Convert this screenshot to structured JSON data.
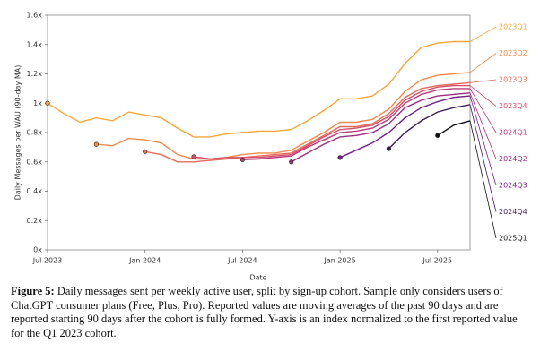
{
  "chart_data": {
    "type": "line",
    "x_label": "Date",
    "y_label": "Daily Messages per WAU (90-day MA)",
    "x": [
      "2023-07",
      "2023-08",
      "2023-09",
      "2023-10",
      "2023-11",
      "2023-12",
      "2024-01",
      "2024-02",
      "2024-03",
      "2024-04",
      "2024-05",
      "2024-06",
      "2024-07",
      "2024-08",
      "2024-09",
      "2024-10",
      "2024-11",
      "2024-12",
      "2025-01",
      "2025-02",
      "2025-03",
      "2025-04",
      "2025-05",
      "2025-06",
      "2025-07",
      "2025-08",
      "2025-09"
    ],
    "xlim": [
      "2023-07",
      "2025-09"
    ],
    "xticks": [
      {
        "value": "2023-07",
        "label": "Jul 2023"
      },
      {
        "value": "2024-01",
        "label": "Jan 2024"
      },
      {
        "value": "2024-07",
        "label": "Jul 2024"
      },
      {
        "value": "2025-01",
        "label": "Jan 2025"
      },
      {
        "value": "2025-07",
        "label": "Jul 2025"
      }
    ],
    "ylim": [
      0,
      1.6
    ],
    "yticks": [
      {
        "value": 0,
        "label": "0x"
      },
      {
        "value": 0.2,
        "label": "0.2x"
      },
      {
        "value": 0.4,
        "label": "0.4x"
      },
      {
        "value": 0.6,
        "label": "0.6x"
      },
      {
        "value": 0.8,
        "label": "0.8x"
      },
      {
        "value": 1,
        "label": "1x"
      },
      {
        "value": 1.2,
        "label": "1.2x"
      },
      {
        "value": 1.4,
        "label": "1.4x"
      },
      {
        "value": 1.6,
        "label": "1.6x"
      }
    ],
    "grid": false,
    "series": [
      {
        "name": "2023Q1",
        "color": "#f4a73b",
        "values": [
          1.0,
          0.93,
          0.87,
          0.9,
          0.88,
          0.94,
          0.92,
          0.9,
          0.83,
          0.77,
          0.77,
          0.79,
          0.8,
          0.81,
          0.81,
          0.82,
          0.88,
          0.95,
          1.03,
          1.03,
          1.05,
          1.13,
          1.27,
          1.38,
          1.41,
          1.42,
          1.42
        ]
      },
      {
        "name": "2023Q2",
        "color": "#ef8a4a",
        "values": [
          null,
          null,
          null,
          0.72,
          0.71,
          0.76,
          0.75,
          0.73,
          0.65,
          0.62,
          0.62,
          0.63,
          0.65,
          0.66,
          0.66,
          0.68,
          0.74,
          0.8,
          0.87,
          0.87,
          0.89,
          0.96,
          1.08,
          1.16,
          1.19,
          1.2,
          1.21
        ]
      },
      {
        "name": "2023Q3",
        "color": "#e5695c",
        "values": [
          null,
          null,
          null,
          null,
          null,
          null,
          0.67,
          0.65,
          0.6,
          0.6,
          0.61,
          0.62,
          0.63,
          0.64,
          0.65,
          0.66,
          0.72,
          0.78,
          0.84,
          0.84,
          0.86,
          0.93,
          1.04,
          1.1,
          1.12,
          1.13,
          1.14
        ]
      },
      {
        "name": "2023Q4",
        "color": "#d34f6b",
        "values": [
          null,
          null,
          null,
          null,
          null,
          null,
          null,
          null,
          null,
          0.635,
          0.62,
          0.63,
          0.63,
          0.63,
          0.64,
          0.65,
          0.71,
          0.77,
          0.82,
          0.83,
          0.85,
          0.91,
          1.02,
          1.08,
          1.11,
          1.12,
          1.12
        ]
      },
      {
        "name": "2024Q1",
        "color": "#b93a78",
        "values": [
          null,
          null,
          null,
          null,
          null,
          null,
          null,
          null,
          null,
          null,
          null,
          null,
          0.615,
          0.62,
          0.63,
          0.64,
          0.7,
          0.75,
          0.8,
          0.81,
          0.83,
          0.89,
          1.0,
          1.06,
          1.09,
          1.1,
          1.1
        ]
      },
      {
        "name": "2024Q2",
        "color": "#9a2d80",
        "values": [
          null,
          null,
          null,
          null,
          null,
          null,
          null,
          null,
          null,
          null,
          null,
          null,
          null,
          null,
          null,
          0.6,
          0.66,
          0.72,
          0.77,
          0.78,
          0.8,
          0.86,
          0.97,
          1.02,
          1.05,
          1.06,
          1.07
        ]
      },
      {
        "name": "2024Q3",
        "color": "#72208a",
        "values": [
          null,
          null,
          null,
          null,
          null,
          null,
          null,
          null,
          null,
          null,
          null,
          null,
          null,
          null,
          null,
          null,
          null,
          null,
          0.63,
          0.68,
          0.73,
          0.8,
          0.9,
          0.97,
          1.01,
          1.04,
          1.05
        ]
      },
      {
        "name": "2024Q4",
        "color": "#3f1a5c",
        "values": [
          null,
          null,
          null,
          null,
          null,
          null,
          null,
          null,
          null,
          null,
          null,
          null,
          null,
          null,
          null,
          null,
          null,
          null,
          null,
          null,
          null,
          0.69,
          0.8,
          0.88,
          0.94,
          0.97,
          0.99
        ]
      },
      {
        "name": "2025Q1",
        "color": "#111111",
        "values": [
          null,
          null,
          null,
          null,
          null,
          null,
          null,
          null,
          null,
          null,
          null,
          null,
          null,
          null,
          null,
          null,
          null,
          null,
          null,
          null,
          null,
          null,
          null,
          null,
          0.78,
          0.85,
          0.88
        ]
      }
    ]
  },
  "figure": {
    "label": "Figure 5:",
    "text": "Daily messages sent per weekly active user, split by sign-up cohort. Sample only considers users of ChatGPT consumer plans (Free, Plus, Pro). Reported values are moving averages of the past 90 days and are reported starting 90 days after the cohort is fully formed. Y-axis is an index normalized to the first reported value for the Q1 2023 cohort."
  }
}
